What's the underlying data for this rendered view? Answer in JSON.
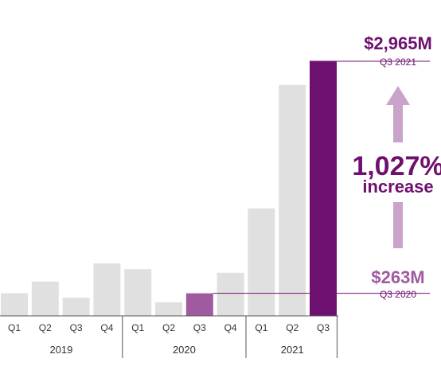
{
  "chart_data": {
    "type": "bar",
    "categories": [
      {
        "quarter": "Q1",
        "year": "2019"
      },
      {
        "quarter": "Q2",
        "year": "2019"
      },
      {
        "quarter": "Q3",
        "year": "2019"
      },
      {
        "quarter": "Q4",
        "year": "2019"
      },
      {
        "quarter": "Q1",
        "year": "2020"
      },
      {
        "quarter": "Q2",
        "year": "2020"
      },
      {
        "quarter": "Q3",
        "year": "2020"
      },
      {
        "quarter": "Q4",
        "year": "2020"
      },
      {
        "quarter": "Q1",
        "year": "2021"
      },
      {
        "quarter": "Q2",
        "year": "2021"
      },
      {
        "quarter": "Q3",
        "year": "2021"
      }
    ],
    "values": [
      263,
      400,
      212,
      611,
      545,
      158,
      263,
      502,
      1251,
      2690,
      2965
    ],
    "years": [
      "2019",
      "2020",
      "2021"
    ],
    "ylim": [
      0,
      3000
    ],
    "grid": false,
    "colors": {
      "default": "#e0e0e0",
      "start": "#a05aa0",
      "end": "#6e1070",
      "arrow": "#c9a3c9",
      "text_dark": "#6e1070",
      "text_mid": "#a05aa0",
      "axis": "#555555"
    },
    "highlight": {
      "start_index": 6,
      "end_index": 10
    },
    "annotations": {
      "end_value": "$2,965M",
      "end_period": "Q3 2021",
      "start_value": "$263M",
      "start_period": "Q3 2020",
      "percent": "1,027%",
      "percent_word": "increase"
    }
  }
}
